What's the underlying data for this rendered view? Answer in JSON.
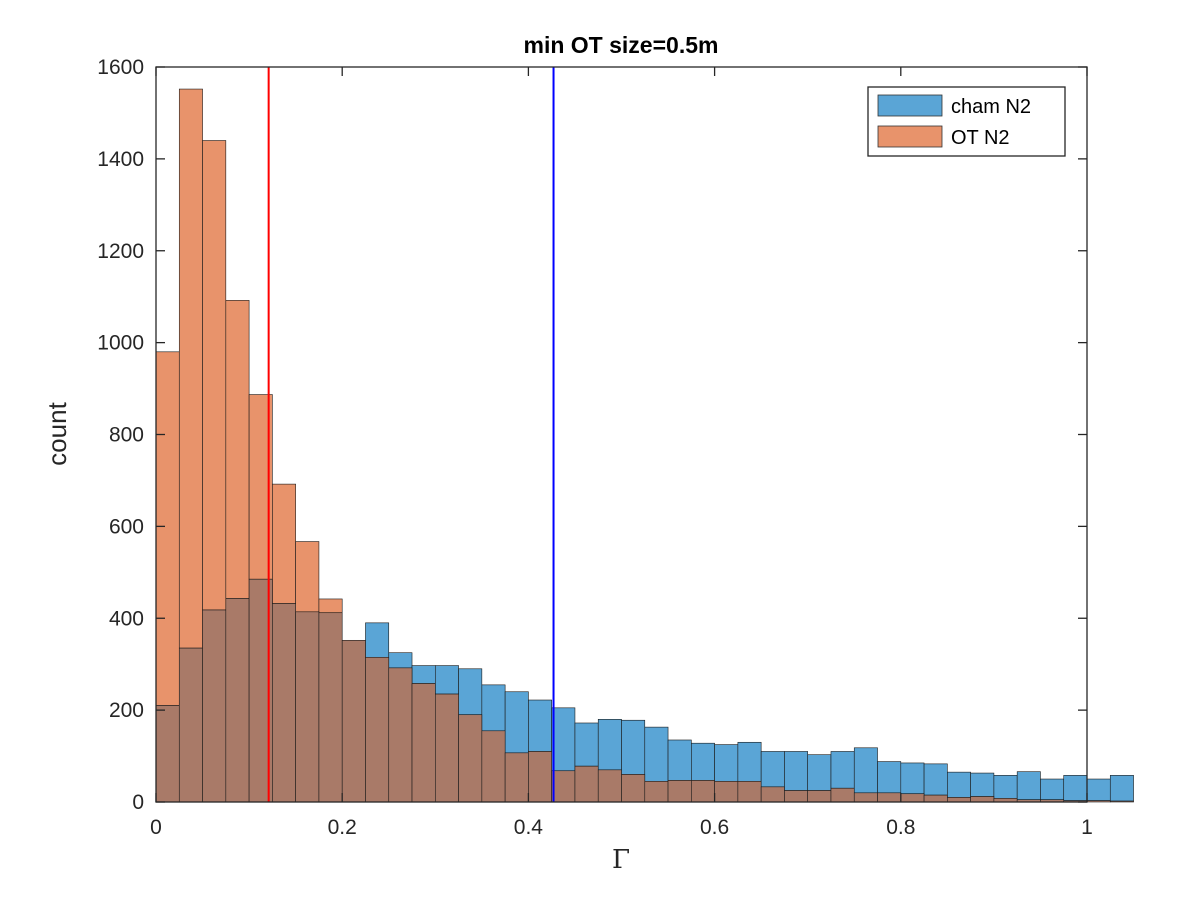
{
  "chart_data": {
    "type": "bar",
    "title": "min OT size=0.5m",
    "xlabel": "Γ",
    "ylabel": "count",
    "xlim": [
      0,
      1
    ],
    "ylim": [
      0,
      1600
    ],
    "xticks": [
      0,
      0.2,
      0.4,
      0.6,
      0.8,
      1
    ],
    "xtick_labels": [
      "0",
      "0.2",
      "0.4",
      "0.6",
      "0.8",
      "1"
    ],
    "yticks": [
      0,
      200,
      400,
      600,
      800,
      1000,
      1200,
      1400,
      1600
    ],
    "ytick_labels": [
      "0",
      "200",
      "400",
      "600",
      "800",
      "1000",
      "1200",
      "1400",
      "1600"
    ],
    "grid": false,
    "legend_position": "top-right",
    "bin_width": 0.025,
    "bin_start": 0,
    "colors": {
      "cham": "#5aa5d6",
      "ot": "#e8936b",
      "overlap": "#a97a68",
      "red_line": "#ff0000",
      "blue_line": "#0000ff"
    },
    "vertical_lines": [
      {
        "x": 0.121,
        "color": "#ff0000"
      },
      {
        "x": 0.427,
        "color": "#0000ff"
      }
    ],
    "series": [
      {
        "name": "cham N2",
        "values": [
          210,
          335,
          418,
          443,
          485,
          432,
          414,
          412,
          352,
          390,
          325,
          297,
          297,
          290,
          255,
          240,
          222,
          205,
          172,
          180,
          178,
          163,
          135,
          128,
          125,
          130,
          110,
          110,
          103,
          110,
          118,
          88,
          85,
          83,
          65,
          63,
          58,
          66,
          50,
          58,
          50,
          58
        ]
      },
      {
        "name": "OT N2",
        "values": [
          980,
          1552,
          1440,
          1092,
          887,
          692,
          567,
          442,
          352,
          315,
          292,
          258,
          235,
          190,
          155,
          107,
          110,
          68,
          78,
          70,
          60,
          45,
          47,
          47,
          45,
          45,
          33,
          25,
          25,
          30,
          20,
          20,
          18,
          15,
          10,
          12,
          8,
          5,
          5,
          3,
          3,
          2
        ]
      }
    ]
  }
}
